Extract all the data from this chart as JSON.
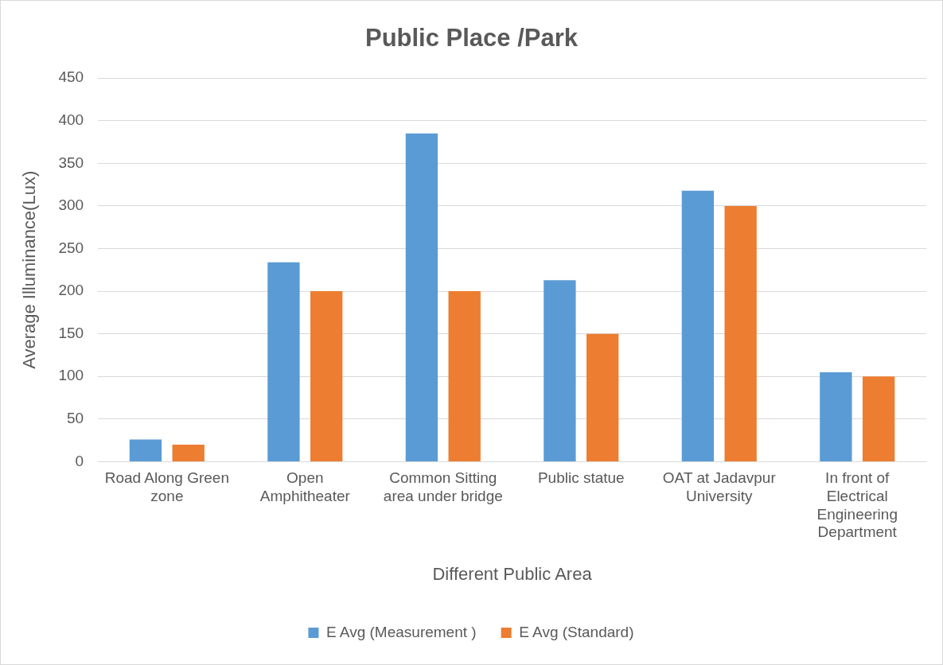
{
  "chart_data": {
    "type": "bar",
    "title": "Public Place /Park",
    "xlabel": "Different Public Area",
    "ylabel": "Average Illuminance(Lux)",
    "categories": [
      "Road Along Green zone",
      "Open Amphitheater",
      "Common Sitting area under bridge",
      "Public statue",
      "OAT at Jadavpur University",
      "In front of Electrical Engineering Department"
    ],
    "series": [
      {
        "name": "E Avg (Measurement )",
        "color": "#5b9bd5",
        "values": [
          26,
          234,
          385,
          213,
          318,
          105
        ]
      },
      {
        "name": "E Avg (Standard)",
        "color": "#ed7d31",
        "values": [
          20,
          200,
          200,
          150,
          300,
          100
        ]
      }
    ],
    "ylim": [
      0,
      450
    ],
    "yticks": [
      0,
      50,
      100,
      150,
      200,
      250,
      300,
      350,
      400,
      450
    ],
    "grid": "y",
    "legend": "bottom"
  }
}
